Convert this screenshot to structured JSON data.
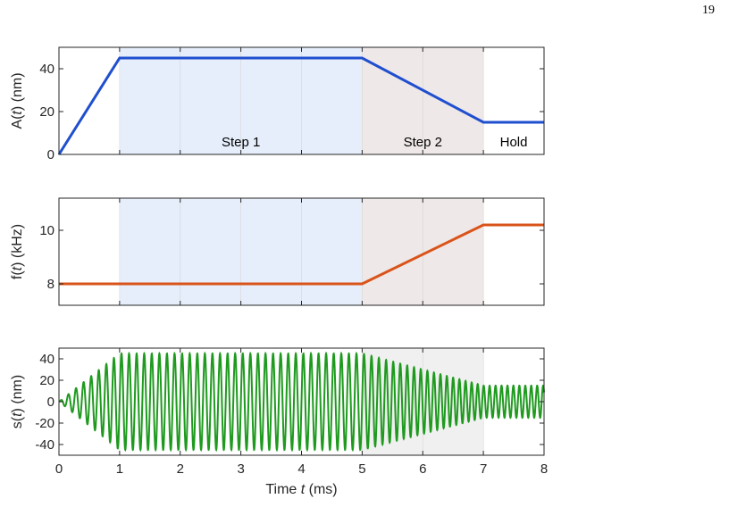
{
  "page_number": "19",
  "colors": {
    "step1_region": "#e6eefb",
    "step2_region": "#efe8e8",
    "hold_region_bottom": "#f0f0f0",
    "amplitude": "#1f4fcf",
    "frequency": "#d9541a",
    "signal": "#1f9a1f",
    "axis": "#262626"
  },
  "regions": {
    "step1": {
      "label": "Step 1",
      "x_range": [
        1,
        5
      ]
    },
    "step2": {
      "label": "Step 2",
      "x_range": [
        5,
        7
      ]
    },
    "hold": {
      "label": "Hold",
      "x_range": [
        7,
        8
      ]
    }
  },
  "chart_data": [
    {
      "type": "line",
      "name": "amplitude",
      "ylabel_parts": [
        "A(",
        "t",
        ") (nm)"
      ],
      "xlim": [
        0,
        8
      ],
      "ylim": [
        0,
        50
      ],
      "yticks": [
        0,
        20,
        40
      ],
      "ytick_labels": [
        "0",
        "20",
        "40"
      ],
      "x": [
        0,
        1,
        5,
        7,
        8
      ],
      "y": [
        0,
        45,
        45,
        15,
        15
      ]
    },
    {
      "type": "line",
      "name": "frequency",
      "ylabel_parts": [
        "f(",
        "t",
        ") (kHz)"
      ],
      "xlim": [
        0,
        8
      ],
      "ylim": [
        7.2,
        11.2
      ],
      "yticks": [
        8,
        10
      ],
      "ytick_labels": [
        "8",
        "10"
      ],
      "x": [
        0,
        5,
        7,
        8
      ],
      "y": [
        8,
        8,
        10.2,
        10.2
      ]
    },
    {
      "type": "line",
      "name": "signal",
      "ylabel_parts": [
        "s(",
        "t",
        ") (nm)"
      ],
      "xlim": [
        0,
        8
      ],
      "ylim": [
        -50,
        50
      ],
      "yticks": [
        -40,
        -20,
        0,
        20,
        40
      ],
      "ytick_labels": [
        "-40",
        "-20",
        "0",
        "20",
        "40"
      ],
      "xticks": [
        0,
        1,
        2,
        3,
        4,
        5,
        6,
        7,
        8
      ],
      "xtick_labels": [
        "0",
        "1",
        "2",
        "3",
        "4",
        "5",
        "6",
        "7",
        "8"
      ],
      "xlabel_parts": [
        "Time ",
        "t",
        " (ms)"
      ]
    }
  ]
}
